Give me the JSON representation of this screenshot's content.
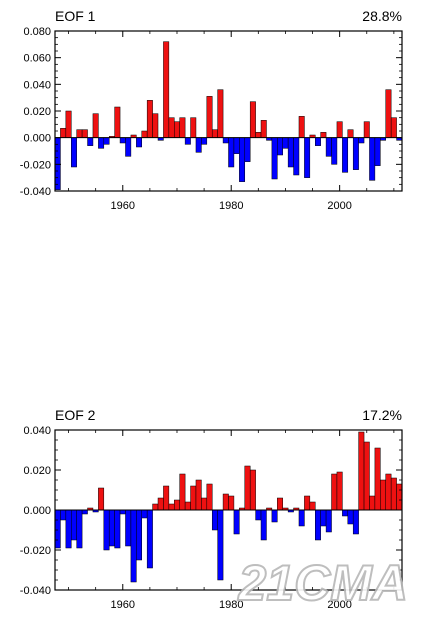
{
  "watermark": "21CMA",
  "colors": {
    "positive": "#ee1111",
    "negative": "#0000ff",
    "axis": "#000000"
  },
  "chart_data": [
    {
      "type": "bar",
      "title": "EOF 1",
      "variance": "28.8%",
      "xlim": [
        1947.5,
        2011.5
      ],
      "ylim": [
        -0.04,
        0.08
      ],
      "yticks": [
        -0.04,
        -0.02,
        0.0,
        0.02,
        0.04,
        0.06,
        0.08
      ],
      "ytick_labels": [
        "-0.040",
        "-0.020",
        "0.000",
        "0.020",
        "0.040",
        "0.060",
        "0.080"
      ],
      "xticks": [
        1960,
        1980,
        2000
      ],
      "xtick_labels": [
        "1960",
        "1980",
        "2000"
      ],
      "x": [
        1948,
        1949,
        1950,
        1951,
        1952,
        1953,
        1954,
        1955,
        1956,
        1957,
        1958,
        1959,
        1960,
        1961,
        1962,
        1963,
        1964,
        1965,
        1966,
        1967,
        1968,
        1969,
        1970,
        1971,
        1972,
        1973,
        1974,
        1975,
        1976,
        1977,
        1978,
        1979,
        1980,
        1981,
        1982,
        1983,
        1984,
        1985,
        1986,
        1987,
        1988,
        1989,
        1990,
        1991,
        1992,
        1993,
        1994,
        1995,
        1996,
        1997,
        1998,
        1999,
        2000,
        2001,
        2002,
        2003,
        2004,
        2005,
        2006,
        2007,
        2008,
        2009,
        2010,
        2011
      ],
      "values": [
        -0.039,
        0.007,
        0.02,
        -0.022,
        0.006,
        0.006,
        -0.006,
        0.018,
        -0.008,
        -0.005,
        0.001,
        0.023,
        -0.004,
        -0.014,
        0.002,
        -0.007,
        0.005,
        0.028,
        0.018,
        -0.002,
        0.072,
        0.015,
        0.012,
        0.015,
        -0.005,
        0.015,
        -0.011,
        -0.005,
        0.031,
        0.006,
        0.036,
        -0.004,
        -0.022,
        -0.012,
        -0.033,
        -0.018,
        0.027,
        0.004,
        0.013,
        -0.002,
        -0.031,
        -0.013,
        -0.008,
        -0.022,
        -0.028,
        0.016,
        -0.03,
        0.002,
        -0.006,
        0.004,
        -0.014,
        -0.02,
        0.012,
        -0.026,
        0.006,
        -0.024,
        -0.004,
        0.012,
        -0.032,
        -0.021,
        -0.002,
        0.036,
        0.015,
        -0.002
      ]
    },
    {
      "type": "bar",
      "title": "EOF 2",
      "variance": "17.2%",
      "xlim": [
        1947.5,
        2011.5
      ],
      "ylim": [
        -0.04,
        0.04
      ],
      "yticks": [
        -0.04,
        -0.02,
        0.0,
        0.02,
        0.04
      ],
      "ytick_labels": [
        "-0.040",
        "-0.020",
        "0.000",
        "0.020",
        "0.040"
      ],
      "xticks": [
        1960,
        1980,
        2000
      ],
      "xtick_labels": [
        "1960",
        "1980",
        "2000"
      ],
      "x": [
        1948,
        1949,
        1950,
        1951,
        1952,
        1953,
        1954,
        1955,
        1956,
        1957,
        1958,
        1959,
        1960,
        1961,
        1962,
        1963,
        1964,
        1965,
        1966,
        1967,
        1968,
        1969,
        1970,
        1971,
        1972,
        1973,
        1974,
        1975,
        1976,
        1977,
        1978,
        1979,
        1980,
        1981,
        1982,
        1983,
        1984,
        1985,
        1986,
        1987,
        1988,
        1989,
        1990,
        1991,
        1992,
        1993,
        1994,
        1995,
        1996,
        1997,
        1998,
        1999,
        2000,
        2001,
        2002,
        2003,
        2004,
        2005,
        2006,
        2007,
        2008,
        2009,
        2010,
        2011
      ],
      "values": [
        -0.019,
        -0.005,
        -0.019,
        -0.015,
        -0.019,
        -0.002,
        0.001,
        -0.001,
        0.011,
        -0.02,
        -0.018,
        -0.019,
        -0.002,
        -0.018,
        -0.036,
        -0.025,
        -0.004,
        -0.029,
        0.003,
        0.006,
        0.012,
        0.003,
        0.005,
        0.018,
        0.004,
        0.012,
        0.015,
        0.006,
        0.013,
        -0.01,
        -0.035,
        0.008,
        0.007,
        -0.012,
        0.001,
        0.022,
        0.02,
        -0.005,
        -0.015,
        0.001,
        -0.006,
        0.006,
        0.001,
        -0.001,
        0.001,
        -0.008,
        0.007,
        0.004,
        -0.015,
        -0.008,
        -0.011,
        0.018,
        0.019,
        -0.003,
        -0.007,
        -0.012,
        0.039,
        0.034,
        0.007,
        0.031,
        0.015,
        0.018,
        0.016,
        0.013
      ]
    }
  ]
}
